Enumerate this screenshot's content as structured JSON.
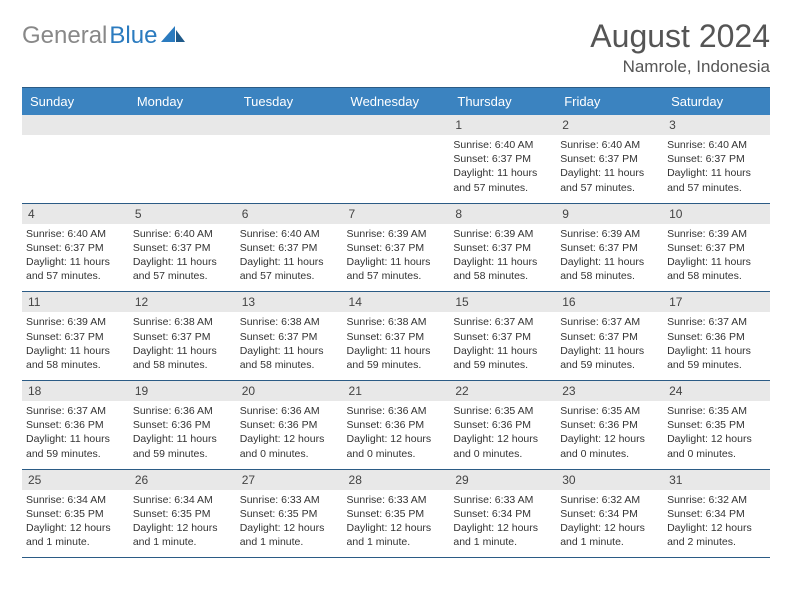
{
  "brand": {
    "part1": "General",
    "part2": "Blue"
  },
  "title": "August 2024",
  "location": "Namrole, Indonesia",
  "colors": {
    "header_bg": "#3b83c0",
    "header_text": "#ffffff",
    "band_bg": "#e8e8e8",
    "grid_line": "#2b5b85",
    "title_color": "#555555",
    "body_text": "#333333",
    "logo_gray": "#888888",
    "logo_blue": "#2b7bbf",
    "page_bg": "#ffffff"
  },
  "typography": {
    "title_fontsize": 32,
    "location_fontsize": 17,
    "dayhead_fontsize": 13,
    "daynum_fontsize": 12,
    "body_fontsize": 10.5
  },
  "day_headers": [
    "Sunday",
    "Monday",
    "Tuesday",
    "Wednesday",
    "Thursday",
    "Friday",
    "Saturday"
  ],
  "weeks": [
    [
      {
        "n": "",
        "sunrise": "",
        "sunset": "",
        "daylight": ""
      },
      {
        "n": "",
        "sunrise": "",
        "sunset": "",
        "daylight": ""
      },
      {
        "n": "",
        "sunrise": "",
        "sunset": "",
        "daylight": ""
      },
      {
        "n": "",
        "sunrise": "",
        "sunset": "",
        "daylight": ""
      },
      {
        "n": "1",
        "sunrise": "Sunrise: 6:40 AM",
        "sunset": "Sunset: 6:37 PM",
        "daylight": "Daylight: 11 hours and 57 minutes."
      },
      {
        "n": "2",
        "sunrise": "Sunrise: 6:40 AM",
        "sunset": "Sunset: 6:37 PM",
        "daylight": "Daylight: 11 hours and 57 minutes."
      },
      {
        "n": "3",
        "sunrise": "Sunrise: 6:40 AM",
        "sunset": "Sunset: 6:37 PM",
        "daylight": "Daylight: 11 hours and 57 minutes."
      }
    ],
    [
      {
        "n": "4",
        "sunrise": "Sunrise: 6:40 AM",
        "sunset": "Sunset: 6:37 PM",
        "daylight": "Daylight: 11 hours and 57 minutes."
      },
      {
        "n": "5",
        "sunrise": "Sunrise: 6:40 AM",
        "sunset": "Sunset: 6:37 PM",
        "daylight": "Daylight: 11 hours and 57 minutes."
      },
      {
        "n": "6",
        "sunrise": "Sunrise: 6:40 AM",
        "sunset": "Sunset: 6:37 PM",
        "daylight": "Daylight: 11 hours and 57 minutes."
      },
      {
        "n": "7",
        "sunrise": "Sunrise: 6:39 AM",
        "sunset": "Sunset: 6:37 PM",
        "daylight": "Daylight: 11 hours and 57 minutes."
      },
      {
        "n": "8",
        "sunrise": "Sunrise: 6:39 AM",
        "sunset": "Sunset: 6:37 PM",
        "daylight": "Daylight: 11 hours and 58 minutes."
      },
      {
        "n": "9",
        "sunrise": "Sunrise: 6:39 AM",
        "sunset": "Sunset: 6:37 PM",
        "daylight": "Daylight: 11 hours and 58 minutes."
      },
      {
        "n": "10",
        "sunrise": "Sunrise: 6:39 AM",
        "sunset": "Sunset: 6:37 PM",
        "daylight": "Daylight: 11 hours and 58 minutes."
      }
    ],
    [
      {
        "n": "11",
        "sunrise": "Sunrise: 6:39 AM",
        "sunset": "Sunset: 6:37 PM",
        "daylight": "Daylight: 11 hours and 58 minutes."
      },
      {
        "n": "12",
        "sunrise": "Sunrise: 6:38 AM",
        "sunset": "Sunset: 6:37 PM",
        "daylight": "Daylight: 11 hours and 58 minutes."
      },
      {
        "n": "13",
        "sunrise": "Sunrise: 6:38 AM",
        "sunset": "Sunset: 6:37 PM",
        "daylight": "Daylight: 11 hours and 58 minutes."
      },
      {
        "n": "14",
        "sunrise": "Sunrise: 6:38 AM",
        "sunset": "Sunset: 6:37 PM",
        "daylight": "Daylight: 11 hours and 59 minutes."
      },
      {
        "n": "15",
        "sunrise": "Sunrise: 6:37 AM",
        "sunset": "Sunset: 6:37 PM",
        "daylight": "Daylight: 11 hours and 59 minutes."
      },
      {
        "n": "16",
        "sunrise": "Sunrise: 6:37 AM",
        "sunset": "Sunset: 6:37 PM",
        "daylight": "Daylight: 11 hours and 59 minutes."
      },
      {
        "n": "17",
        "sunrise": "Sunrise: 6:37 AM",
        "sunset": "Sunset: 6:36 PM",
        "daylight": "Daylight: 11 hours and 59 minutes."
      }
    ],
    [
      {
        "n": "18",
        "sunrise": "Sunrise: 6:37 AM",
        "sunset": "Sunset: 6:36 PM",
        "daylight": "Daylight: 11 hours and 59 minutes."
      },
      {
        "n": "19",
        "sunrise": "Sunrise: 6:36 AM",
        "sunset": "Sunset: 6:36 PM",
        "daylight": "Daylight: 11 hours and 59 minutes."
      },
      {
        "n": "20",
        "sunrise": "Sunrise: 6:36 AM",
        "sunset": "Sunset: 6:36 PM",
        "daylight": "Daylight: 12 hours and 0 minutes."
      },
      {
        "n": "21",
        "sunrise": "Sunrise: 6:36 AM",
        "sunset": "Sunset: 6:36 PM",
        "daylight": "Daylight: 12 hours and 0 minutes."
      },
      {
        "n": "22",
        "sunrise": "Sunrise: 6:35 AM",
        "sunset": "Sunset: 6:36 PM",
        "daylight": "Daylight: 12 hours and 0 minutes."
      },
      {
        "n": "23",
        "sunrise": "Sunrise: 6:35 AM",
        "sunset": "Sunset: 6:36 PM",
        "daylight": "Daylight: 12 hours and 0 minutes."
      },
      {
        "n": "24",
        "sunrise": "Sunrise: 6:35 AM",
        "sunset": "Sunset: 6:35 PM",
        "daylight": "Daylight: 12 hours and 0 minutes."
      }
    ],
    [
      {
        "n": "25",
        "sunrise": "Sunrise: 6:34 AM",
        "sunset": "Sunset: 6:35 PM",
        "daylight": "Daylight: 12 hours and 1 minute."
      },
      {
        "n": "26",
        "sunrise": "Sunrise: 6:34 AM",
        "sunset": "Sunset: 6:35 PM",
        "daylight": "Daylight: 12 hours and 1 minute."
      },
      {
        "n": "27",
        "sunrise": "Sunrise: 6:33 AM",
        "sunset": "Sunset: 6:35 PM",
        "daylight": "Daylight: 12 hours and 1 minute."
      },
      {
        "n": "28",
        "sunrise": "Sunrise: 6:33 AM",
        "sunset": "Sunset: 6:35 PM",
        "daylight": "Daylight: 12 hours and 1 minute."
      },
      {
        "n": "29",
        "sunrise": "Sunrise: 6:33 AM",
        "sunset": "Sunset: 6:34 PM",
        "daylight": "Daylight: 12 hours and 1 minute."
      },
      {
        "n": "30",
        "sunrise": "Sunrise: 6:32 AM",
        "sunset": "Sunset: 6:34 PM",
        "daylight": "Daylight: 12 hours and 1 minute."
      },
      {
        "n": "31",
        "sunrise": "Sunrise: 6:32 AM",
        "sunset": "Sunset: 6:34 PM",
        "daylight": "Daylight: 12 hours and 2 minutes."
      }
    ]
  ]
}
